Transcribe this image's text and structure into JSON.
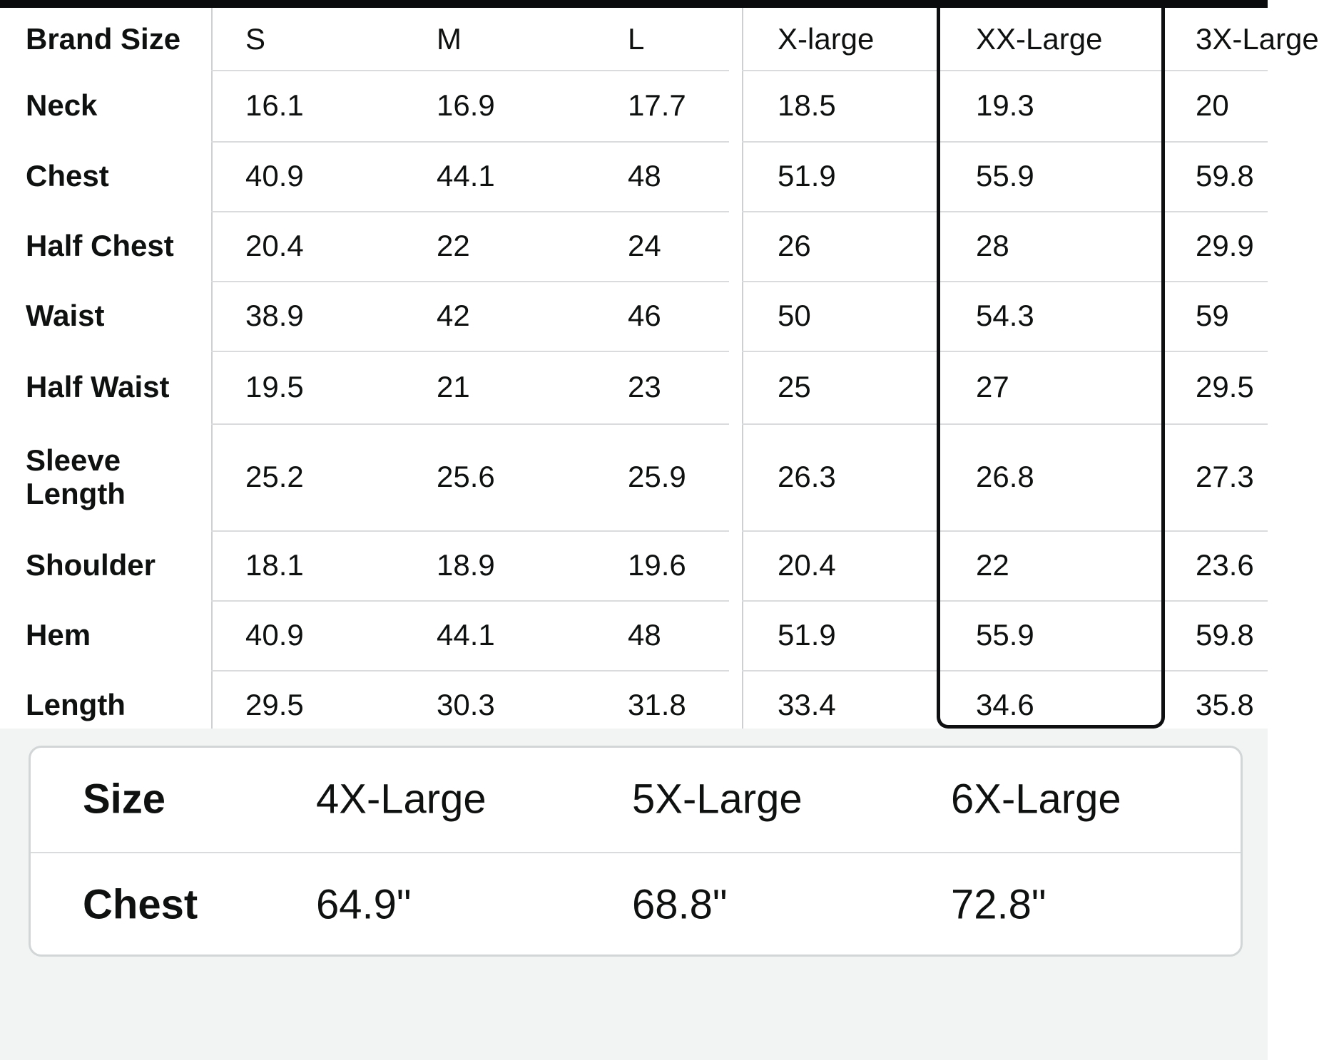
{
  "colors": {
    "top_bar": "#0a0b0c",
    "selected_outline": "#0d0f10",
    "grid_line": "#dadbdc",
    "lower_background": "#f2f3f3",
    "text": "#0f1111"
  },
  "size_table": {
    "corner_label": "Brand Size",
    "left_size_headers": [
      "S",
      "M",
      "L"
    ],
    "right_size_headers": [
      "X-large",
      "XX-Large",
      "3X-Large"
    ],
    "selected_size": "XX-Large",
    "rows": [
      {
        "label": "Neck",
        "values_left": [
          "16.1",
          "16.9",
          "17.7"
        ],
        "values_right": [
          "18.5",
          "19.3",
          "20"
        ]
      },
      {
        "label": "Chest",
        "values_left": [
          "40.9",
          "44.1",
          "48"
        ],
        "values_right": [
          "51.9",
          "55.9",
          "59.8"
        ]
      },
      {
        "label": "Half Chest",
        "values_left": [
          "20.4",
          "22",
          "24"
        ],
        "values_right": [
          "26",
          "28",
          "29.9"
        ]
      },
      {
        "label": "Waist",
        "values_left": [
          "38.9",
          "42",
          "46"
        ],
        "values_right": [
          "50",
          "54.3",
          "59"
        ]
      },
      {
        "label": "Half Waist",
        "values_left": [
          "19.5",
          "21",
          "23"
        ],
        "values_right": [
          "25",
          "27",
          "29.5"
        ]
      },
      {
        "label": "Sleeve Length",
        "values_left": [
          "25.2",
          "25.6",
          "25.9"
        ],
        "values_right": [
          "26.3",
          "26.8",
          "27.3"
        ]
      },
      {
        "label": "Shoulder",
        "values_left": [
          "18.1",
          "18.9",
          "19.6"
        ],
        "values_right": [
          "20.4",
          "22",
          "23.6"
        ]
      },
      {
        "label": "Hem",
        "values_left": [
          "40.9",
          "44.1",
          "48"
        ],
        "values_right": [
          "51.9",
          "55.9",
          "59.8"
        ]
      },
      {
        "label": "Length",
        "values_left": [
          "29.5",
          "30.3",
          "31.8"
        ],
        "values_right": [
          "33.4",
          "34.6",
          "35.8"
        ]
      }
    ]
  },
  "summary_card": {
    "rows": [
      {
        "label": "Size",
        "values": [
          "4X-Large",
          "5X-Large",
          "6X-Large"
        ]
      },
      {
        "label": "Chest",
        "values": [
          "64.9\"",
          "68.8\"",
          "72.8\""
        ]
      }
    ]
  }
}
